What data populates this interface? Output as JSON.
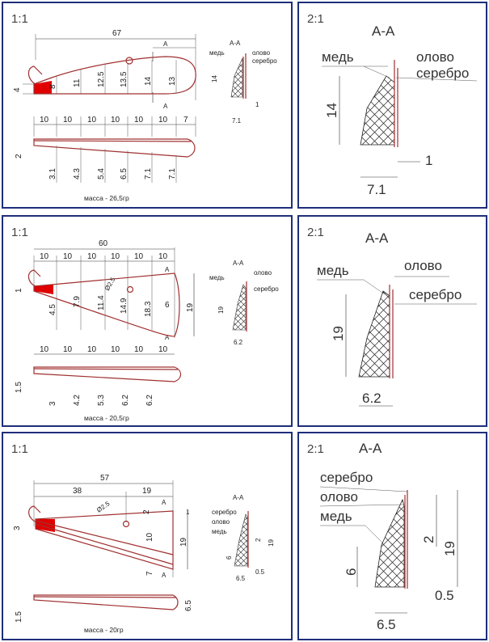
{
  "panels": [
    {
      "scale_main": "1:1",
      "scale_section": "2:1",
      "section_title": "А-А",
      "section_marker": "А",
      "length": "67",
      "heights": [
        "8",
        "11",
        "12.5",
        "13.5",
        "14",
        "13"
      ],
      "left_height": "4",
      "spacing": [
        "10",
        "10",
        "10",
        "10",
        "10",
        "10",
        "7"
      ],
      "thicknesses": [
        "3.1",
        "4.3",
        "5.4",
        "6.5",
        "7.1",
        "7.1"
      ],
      "top_thickness": "2",
      "mass": "масса - 26,5гр",
      "sec_height": "14",
      "sec_width": "7.1",
      "sec_layer": "1",
      "labels": {
        "copper": "медь",
        "tin": "олово",
        "silver": "серебро"
      }
    },
    {
      "scale_main": "1:1",
      "scale_section": "2:1",
      "section_title": "А-А",
      "section_marker": "А",
      "length": "60",
      "spacing": [
        "10",
        "10",
        "10",
        "10",
        "10",
        "10"
      ],
      "left_height": "1",
      "heights": [
        "4.5",
        "7.9",
        "11.4",
        "14.9",
        "18.3"
      ],
      "hole": "Ø2.5",
      "right_inner": "6",
      "right_outer": "19",
      "thicknesses": [
        "3",
        "4.2",
        "5.3",
        "6.2",
        "6.2"
      ],
      "top_thickness": "1.5",
      "mass": "масса - 20,5гр",
      "sec_height": "19",
      "sec_width": "6.2",
      "labels": {
        "copper": "медь",
        "tin": "олово",
        "silver": "серебро"
      }
    },
    {
      "scale_main": "1:1",
      "scale_section": "2:1",
      "section_title": "А-А",
      "section_marker": "А",
      "length": "57",
      "part_a": "38",
      "part_b": "19",
      "hole": "Ø2.5",
      "left_height": "3",
      "dims": {
        "two": "2",
        "ten": "10",
        "seven": "7",
        "nineteen": "19",
        "one": "1"
      },
      "side_thickness": "6.5",
      "top_thickness": "1.5",
      "mass": "масса - 20гр",
      "sec_six": "6",
      "sec_two": "2",
      "sec_nineteen": "19",
      "sec_half": "0.5",
      "sec_width": "6.5",
      "labels": {
        "copper": "медь",
        "tin": "олово",
        "silver": "серебро"
      }
    }
  ]
}
